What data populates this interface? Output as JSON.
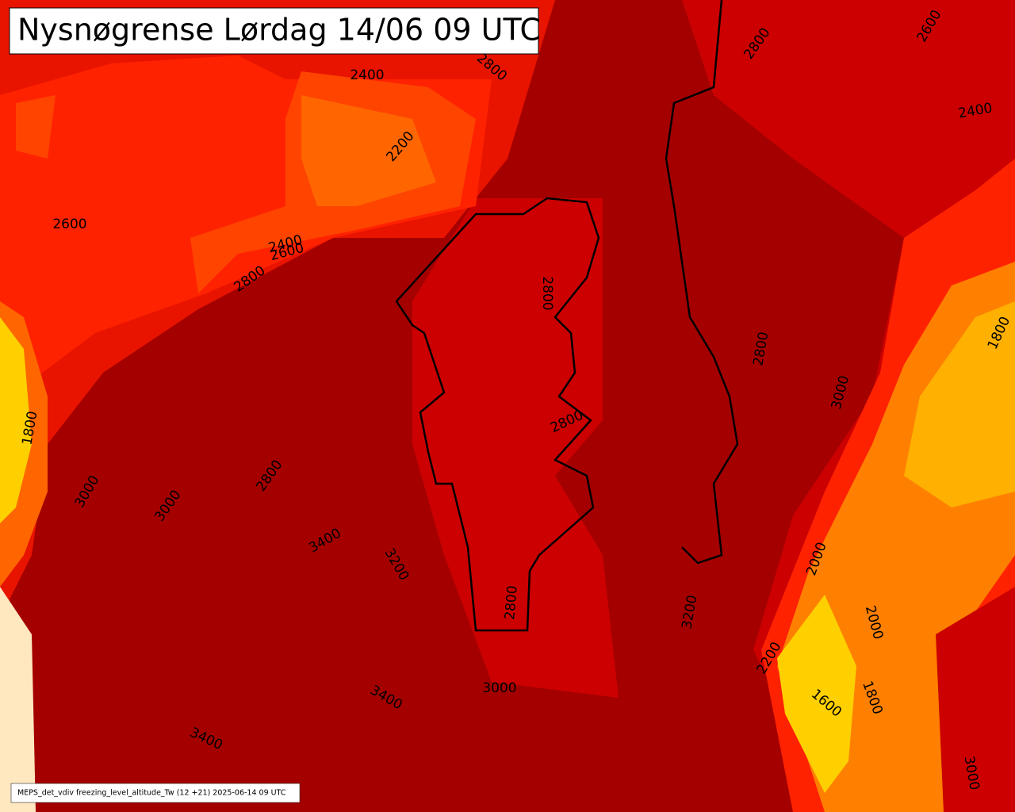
{
  "header": {
    "title": "Nysnøgrense Lørdag 14/06 09 UTC"
  },
  "footer": {
    "caption": "MEPS_det_vdiv freezing_level_altitude_Tw (12 +21) 2025-06-14 09 UTC"
  },
  "contour_labels": [
    "2400",
    "2200",
    "2600",
    "2800",
    "2400",
    "2600",
    "2800",
    "2800",
    "2600",
    "2400",
    "2800",
    "2800",
    "3000",
    "1800",
    "1800",
    "3000",
    "3000",
    "2800",
    "3400",
    "3200",
    "2800",
    "2800",
    "3200",
    "3000",
    "3400",
    "3400",
    "2000",
    "2000",
    "1600",
    "1800",
    "2200",
    "3000"
  ]
}
